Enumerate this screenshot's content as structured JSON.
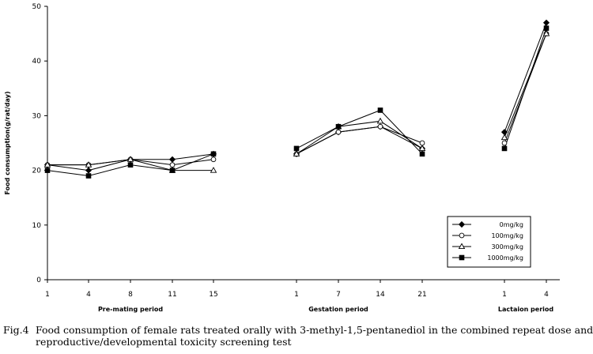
{
  "chart_data": {
    "type": "line",
    "ylabel": "Food consumption(g/rat/day)",
    "ylim": [
      0,
      50
    ],
    "yticks": [
      0,
      10,
      20,
      30,
      40,
      50
    ],
    "grid": false,
    "legend_position": "bottom-right",
    "periods": [
      {
        "name": "Pre-mating period",
        "x": [
          "1",
          "4",
          "8",
          "11",
          "15"
        ]
      },
      {
        "name": "Gestation period",
        "x": [
          "1",
          "7",
          "14",
          "21"
        ]
      },
      {
        "name": "Lactaion period",
        "x": [
          "1",
          "4"
        ]
      }
    ],
    "series": [
      {
        "name": "0mg/kg",
        "marker": "diamond-filled",
        "values": [
          [
            21,
            20,
            22,
            22,
            23
          ],
          [
            23,
            27,
            28,
            24
          ],
          [
            27,
            47
          ]
        ]
      },
      {
        "name": "100mg/kg",
        "marker": "circle-open",
        "values": [
          [
            21,
            21,
            22,
            21,
            22
          ],
          [
            23,
            27,
            28,
            25
          ],
          [
            25,
            45
          ]
        ]
      },
      {
        "name": "300mg/kg",
        "marker": "triangle-open",
        "values": [
          [
            21,
            21,
            22,
            20,
            20
          ],
          [
            23,
            28,
            29,
            24
          ],
          [
            26,
            45
          ]
        ]
      },
      {
        "name": "1000mg/kg",
        "marker": "square-filled",
        "values": [
          [
            20,
            19,
            21,
            20,
            23
          ],
          [
            24,
            28,
            31,
            23
          ],
          [
            24,
            46
          ]
        ]
      }
    ]
  },
  "caption": {
    "figure_number": "Fig.4",
    "line1": "Food consumption of female rats treated orally with 3-methyl-1,5-pentanediol in the combined repeat dose and",
    "line2": "reproductive/developmental toxicity screening test"
  }
}
